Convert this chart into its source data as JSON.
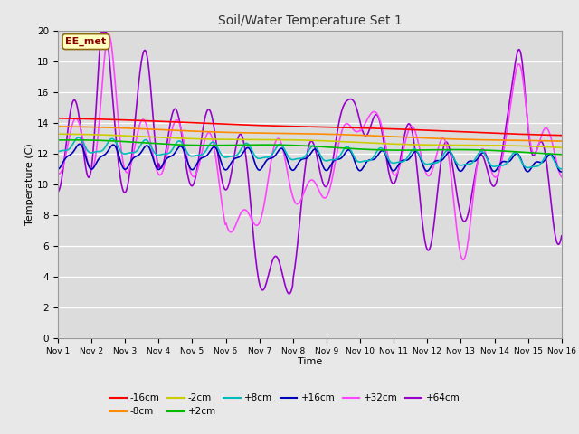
{
  "title": "Soil/Water Temperature Set 1",
  "xlabel": "Time",
  "ylabel": "Temperature (C)",
  "xlim": [
    0,
    15
  ],
  "ylim": [
    0,
    20
  ],
  "xtick_labels": [
    "Nov 1",
    "Nov 2",
    "Nov 3",
    "Nov 4",
    "Nov 5",
    "Nov 6",
    "Nov 7",
    "Nov 8",
    "Nov 9",
    "Nov 10",
    "Nov 11",
    "Nov 12",
    "Nov 13",
    "Nov 14",
    "Nov 15",
    "Nov 16"
  ],
  "ytick_values": [
    0,
    2,
    4,
    6,
    8,
    10,
    12,
    14,
    16,
    18,
    20
  ],
  "annotation_text": "EE_met",
  "annotation_color": "#8B0000",
  "annotation_bg": "#FFFFC0",
  "annotation_border": "#8B6914",
  "series": {
    "-16cm": {
      "color": "#FF0000",
      "linewidth": 1.2
    },
    "-8cm": {
      "color": "#FF8C00",
      "linewidth": 1.2
    },
    "-2cm": {
      "color": "#CCCC00",
      "linewidth": 1.2
    },
    "+2cm": {
      "color": "#00BB00",
      "linewidth": 1.2
    },
    "+8cm": {
      "color": "#00BBBB",
      "linewidth": 1.2
    },
    "+16cm": {
      "color": "#0000BB",
      "linewidth": 1.2
    },
    "+32cm": {
      "color": "#FF44FF",
      "linewidth": 1.2
    },
    "+64cm": {
      "color": "#9900CC",
      "linewidth": 1.2
    }
  },
  "background_color": "#E8E8E8",
  "plot_bg_color": "#DCDCDC"
}
